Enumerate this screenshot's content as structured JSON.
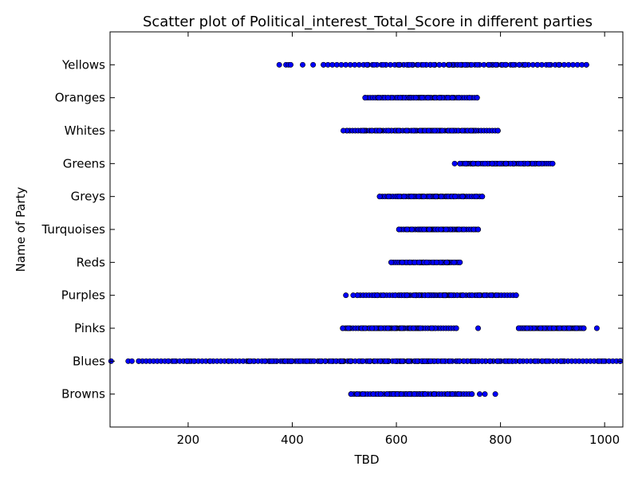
{
  "chart_data": {
    "type": "scatter",
    "title": "Scatter plot of Political_interest_Total_Score in different parties",
    "xlabel": "TBD",
    "ylabel": "Name of Party",
    "xlim": [
      50,
      1035
    ],
    "x_ticks": [
      200,
      400,
      600,
      800,
      1000
    ],
    "categories": [
      "Browns",
      "Blues",
      "Pinks",
      "Purples",
      "Reds",
      "Turquoises",
      "Greys",
      "Greens",
      "Whites",
      "Oranges",
      "Yellows"
    ],
    "grid": false,
    "marker_color": "#0000ff",
    "series": [
      {
        "category": "Yellows",
        "ranges": [
          [
            460,
            965,
            120
          ]
        ],
        "points": [
          375,
          388,
          393,
          397,
          420,
          440
        ]
      },
      {
        "category": "Oranges",
        "ranges": [
          [
            540,
            755,
            90
          ]
        ],
        "points": []
      },
      {
        "category": "Whites",
        "ranges": [
          [
            505,
            795,
            110
          ]
        ],
        "points": [
          498
        ]
      },
      {
        "category": "Greens",
        "ranges": [
          [
            722,
            900,
            90
          ]
        ],
        "points": [
          712
        ]
      },
      {
        "category": "Greys",
        "ranges": [
          [
            568,
            765,
            80
          ]
        ],
        "points": []
      },
      {
        "category": "Turquoises",
        "ranges": [
          [
            605,
            757,
            70
          ]
        ],
        "points": []
      },
      {
        "category": "Reds",
        "ranges": [
          [
            590,
            722,
            70
          ]
        ],
        "points": []
      },
      {
        "category": "Purples",
        "ranges": [
          [
            525,
            830,
            110
          ]
        ],
        "points": [
          503,
          517
        ]
      },
      {
        "category": "Pinks",
        "ranges": [
          [
            497,
            715,
            90
          ],
          [
            835,
            960,
            70
          ]
        ],
        "points": [
          757,
          985
        ]
      },
      {
        "category": "Blues",
        "ranges": [
          [
            105,
            1030,
            260
          ]
        ],
        "points": [
          52,
          85,
          92
        ]
      },
      {
        "category": "Browns",
        "ranges": [
          [
            513,
            745,
            90
          ]
        ],
        "points": [
          760,
          770,
          790
        ]
      }
    ]
  }
}
